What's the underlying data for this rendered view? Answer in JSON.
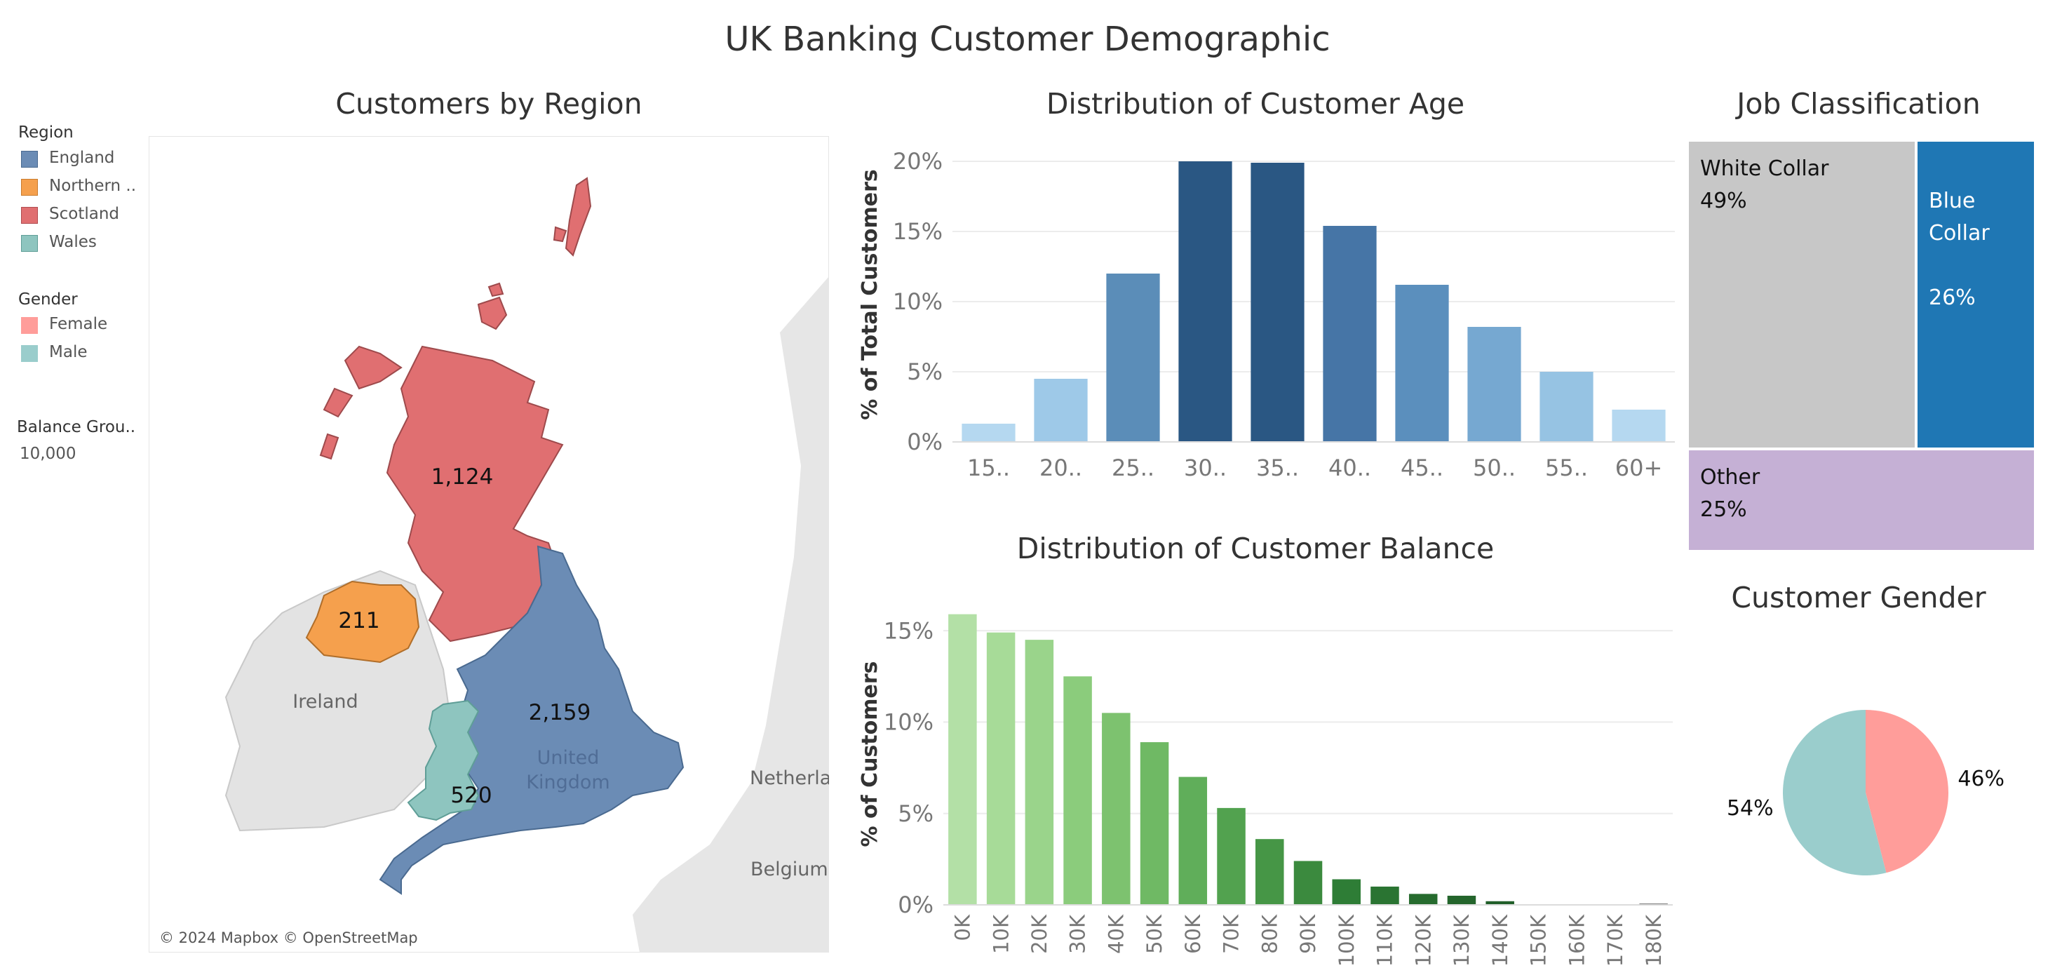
{
  "dashboard": {
    "title": "UK Banking Customer Demographic"
  },
  "legends": {
    "region": {
      "title": "Region",
      "items": [
        {
          "label": "England",
          "color": "#6b8cb5"
        },
        {
          "label": "Northern ..",
          "color": "#f5a04d"
        },
        {
          "label": "Scotland",
          "color": "#e06f71"
        },
        {
          "label": "Wales",
          "color": "#8ec5bf"
        }
      ]
    },
    "gender": {
      "title": "Gender",
      "items": [
        {
          "label": "Female",
          "color": "#ff9d9a"
        },
        {
          "label": "Male",
          "color": "#9acdcc"
        }
      ]
    },
    "balance_group": {
      "title": "Balance Grou..",
      "value": "10,000"
    }
  },
  "map": {
    "title": "Customers by Region",
    "attribution": "© 2024 Mapbox © OpenStreetMap",
    "labels": {
      "ireland": "Ireland",
      "united_kingdom_line1": "United",
      "united_kingdom_line2": "Kingdom",
      "netherlands": "Netherla",
      "belgium": "Belgium"
    },
    "regions": [
      {
        "name": "Scotland",
        "value": "1,124",
        "color": "#e06f71"
      },
      {
        "name": "Northern Ireland",
        "value": "211",
        "color": "#f5a04d"
      },
      {
        "name": "England",
        "value": "2,159",
        "color": "#6b8cb5"
      },
      {
        "name": "Wales",
        "value": "520",
        "color": "#8ec5bf"
      }
    ]
  },
  "chart_data": [
    {
      "type": "bar",
      "title": "Distribution of Customer Age",
      "ylabel": "% of Total Customers",
      "xlabel": "",
      "categories": [
        "15..",
        "20..",
        "25..",
        "30..",
        "35..",
        "40..",
        "45..",
        "50..",
        "55..",
        "60+"
      ],
      "values": [
        1.3,
        4.5,
        12.0,
        20.0,
        19.9,
        15.4,
        11.2,
        8.2,
        5.0,
        2.3
      ],
      "colors": [
        "#b5d8f0",
        "#9ec9e8",
        "#5b8db8",
        "#2a5783",
        "#2a5783",
        "#4675a6",
        "#5b8fbd",
        "#76a8d1",
        "#96c3e3",
        "#b5d8f0"
      ],
      "yticks": [
        "0%",
        "5%",
        "10%",
        "15%",
        "20%"
      ],
      "ylim": [
        0,
        21
      ],
      "grid": true
    },
    {
      "type": "bar",
      "title": "Distribution of Customer Balance",
      "ylabel": "% of Customers",
      "xlabel": "",
      "categories": [
        "0K",
        "10K",
        "20K",
        "30K",
        "40K",
        "50K",
        "60K",
        "70K",
        "80K",
        "90K",
        "100K",
        "110K",
        "120K",
        "130K",
        "140K",
        "150K",
        "160K",
        "170K",
        "180K"
      ],
      "values": [
        15.9,
        14.9,
        14.5,
        12.5,
        10.5,
        8.9,
        7.0,
        5.3,
        3.6,
        2.4,
        1.4,
        1.0,
        0.6,
        0.5,
        0.2,
        0.0,
        0.0,
        0.0,
        0.05
      ],
      "colors": [
        "#b3e0a6",
        "#a7db98",
        "#9ad48b",
        "#8bcc7c",
        "#7dc26f",
        "#6fb964",
        "#60ae5a",
        "#52a24f",
        "#469646",
        "#3b8a3e",
        "#2e7d36",
        "#2a7432",
        "#266b2e",
        "#24652c",
        "#215f2a",
        "#215f2a",
        "#215f2a",
        "#215f2a",
        "#7f7f7f"
      ],
      "yticks": [
        "0%",
        "5%",
        "10%",
        "15%"
      ],
      "ylim": [
        0,
        16.5
      ],
      "grid": true
    },
    {
      "type": "treemap",
      "title": "Job Classification",
      "items": [
        {
          "label": "White Collar",
          "pct": "49%",
          "value": 49,
          "color": "#c7c7c7"
        },
        {
          "label": "Blue\nCollar",
          "pct": "26%",
          "value": 26,
          "color": "#1f77b4"
        },
        {
          "label": "Other",
          "pct": "25%",
          "value": 25,
          "color": "#c5b0d5"
        }
      ]
    },
    {
      "type": "pie",
      "title": "Customer Gender",
      "slices": [
        {
          "label": "Female",
          "value": 46,
          "text": "46%",
          "color": "#ff9d9a"
        },
        {
          "label": "Male",
          "value": 54,
          "text": "54%",
          "color": "#9acdcc"
        }
      ]
    }
  ]
}
